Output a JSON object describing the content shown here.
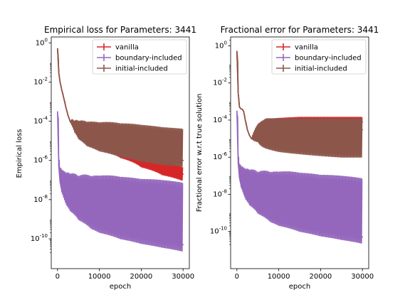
{
  "chart_data": [
    {
      "type": "line",
      "title": "Empirical loss for Parameters: 3441",
      "xlabel": "epoch",
      "ylabel": "Empirical loss",
      "xlim": [
        -1500,
        31500
      ],
      "ylim": [
        3e-12,
        2.0
      ],
      "yscale": "log",
      "xticks": [
        0,
        10000,
        20000,
        30000
      ],
      "yticks": [
        {
          "exp": "0",
          "value": 1
        },
        {
          "exp": "-2",
          "value": 0.01
        },
        {
          "exp": "-4",
          "value": 0.0001
        },
        {
          "exp": "-6",
          "value": 1e-06
        },
        {
          "exp": "-8",
          "value": 1e-08
        },
        {
          "exp": "-10",
          "value": 1e-10
        }
      ],
      "grid": false,
      "legend_position": "upper-right",
      "series": [
        {
          "name": "vanilla",
          "color": "#d62728",
          "x": [
            0,
            300,
            600,
            1000,
            1500,
            2000,
            2500,
            3000,
            4000,
            5000,
            7000,
            10000,
            15000,
            20000,
            25000,
            30000
          ],
          "y": [
            0.5,
            0.03,
            0.01,
            0.004,
            0.0015,
            0.0005,
            0.0002,
            0.0001,
            5e-05,
            3e-05,
            1.5e-05,
            8e-06,
            3e-06,
            1e-06,
            4e-07,
            2e-07
          ],
          "spread": {
            "up": [
              1,
              1,
              1,
              1,
              1,
              1,
              1,
              1,
              1.3,
              1.5,
              1.8,
              2.0,
              2.2,
              2.2,
              2.2,
              2.2
            ],
            "down": [
              1,
              1,
              1,
              1,
              1,
              1,
              1,
              1,
              1.3,
              1.5,
              1.8,
              2.0,
              2.2,
              2.2,
              2.2,
              2.2
            ]
          }
        },
        {
          "name": "boundary-included",
          "color": "#9467bd",
          "x": [
            0,
            300,
            600,
            1000,
            1500,
            2000,
            3000,
            5000,
            8000,
            10000,
            15000,
            20000,
            25000,
            30000
          ],
          "y": [
            0.0003,
            5e-07,
            8e-08,
            3e-08,
            1.5e-08,
            8e-09,
            4e-09,
            1.5e-09,
            6e-10,
            4e-10,
            2e-10,
            1.2e-10,
            8e-11,
            5e-11
          ],
          "spread": {
            "up": [
              1,
              2,
              5,
              10,
              18,
              28,
              50,
              100,
              250,
              400,
              700,
              900,
              1200,
              1400
            ],
            "down": [
              1,
              1,
              1.2,
              1.3,
              1.3,
              1.4,
              1.5,
              1.6,
              1.8,
              1.9,
              2.0,
              2.1,
              2.2,
              2.2
            ]
          }
        },
        {
          "name": "initial-included",
          "color": "#8c564b",
          "x": [
            0,
            300,
            600,
            1000,
            1500,
            2000,
            2500,
            3000,
            4000,
            5000,
            7000,
            10000,
            15000,
            20000,
            25000,
            30000
          ],
          "y": [
            0.5,
            0.03,
            0.01,
            0.004,
            0.0015,
            0.0005,
            0.0002,
            0.0001,
            4e-05,
            2e-05,
            1e-05,
            6e-06,
            3e-06,
            1.8e-06,
            1.2e-06,
            1e-06
          ],
          "spread": {
            "up": [
              1,
              1,
              1,
              1,
              1,
              1,
              1,
              1,
              2.5,
              5,
              9,
              14,
              25,
              35,
              40,
              40
            ],
            "down": [
              1,
              1,
              1,
              1,
              1,
              1,
              1,
              1,
              1.4,
              1.6,
              1.8,
              2.0,
              2.0,
              2.0,
              2.0,
              2.0
            ]
          }
        }
      ]
    },
    {
      "type": "line",
      "title": "Fractional error for Parameters: 3441",
      "xlabel": "epoch",
      "ylabel": "Fractional error w.r.t true solution",
      "xlim": [
        -1500,
        31500
      ],
      "ylim": [
        1e-12,
        3.0
      ],
      "yscale": "log",
      "xticks": [
        0,
        10000,
        20000,
        30000
      ],
      "yticks": [
        {
          "exp": "0",
          "value": 1
        },
        {
          "exp": "-2",
          "value": 0.01
        },
        {
          "exp": "-4",
          "value": 0.0001
        },
        {
          "exp": "-6",
          "value": 1e-06
        },
        {
          "exp": "-8",
          "value": 1e-08
        },
        {
          "exp": "-10",
          "value": 1e-10
        }
      ],
      "grid": false,
      "legend_position": "upper-right",
      "series": [
        {
          "name": "vanilla",
          "color": "#d62728",
          "x": [
            0,
            300,
            600,
            1000,
            1300,
            1600,
            2000,
            2500,
            3000,
            3500,
            5000,
            7000,
            10000,
            15000,
            20000,
            25000,
            30000
          ],
          "y": [
            0.5,
            0.003,
            0.0005,
            0.0004,
            0.00038,
            0.0003,
            0.0001,
            3e-05,
            1.5e-05,
            1e-05,
            3e-05,
            6e-05,
            7e-05,
            8e-05,
            8e-05,
            8e-05,
            8e-05
          ],
          "spread": {
            "up": [
              1,
              1,
              1,
              1,
              1,
              1,
              1,
              1,
              1,
              1,
              1.6,
              1.8,
              1.8,
              1.8,
              1.8,
              1.8,
              1.8
            ],
            "down": [
              1,
              1,
              1,
              1,
              1,
              1,
              1,
              1,
              1,
              1,
              2.0,
              3.0,
              3.0,
              3.0,
              3.0,
              3.0,
              3.0
            ]
          }
        },
        {
          "name": "boundary-included",
          "color": "#9467bd",
          "x": [
            0,
            300,
            600,
            1000,
            1500,
            2000,
            3000,
            5000,
            8000,
            10000,
            15000,
            20000,
            25000,
            30000
          ],
          "y": [
            0.0003,
            5e-07,
            8e-08,
            3e-08,
            1.5e-08,
            8e-09,
            4e-09,
            1.5e-09,
            6e-10,
            4e-10,
            2e-10,
            1.2e-10,
            8e-11,
            5e-11
          ],
          "spread": {
            "up": [
              1,
              2,
              5,
              10,
              18,
              28,
              50,
              100,
              250,
              400,
              700,
              900,
              1200,
              1400
            ],
            "down": [
              1,
              1,
              1.2,
              1.3,
              1.3,
              1.4,
              1.5,
              1.6,
              1.8,
              1.9,
              2.0,
              2.1,
              2.2,
              2.2
            ]
          }
        },
        {
          "name": "initial-included",
          "color": "#8c564b",
          "x": [
            0,
            300,
            600,
            1000,
            1300,
            1600,
            2000,
            2500,
            3000,
            3500,
            5000,
            7000,
            10000,
            15000,
            20000,
            25000,
            30000
          ],
          "y": [
            0.5,
            0.003,
            0.0005,
            0.0004,
            0.00038,
            0.0003,
            0.0001,
            3e-05,
            1.5e-05,
            1e-05,
            2e-05,
            3e-05,
            3e-05,
            3e-05,
            3e-05,
            3e-05,
            3e-05
          ],
          "spread": {
            "up": [
              1,
              1,
              1,
              1,
              1,
              1,
              1,
              1,
              1,
              1,
              3,
              4,
              4,
              4,
              4,
              4,
              4
            ],
            "down": [
              1,
              1,
              1,
              1,
              1,
              1,
              1,
              1,
              1,
              1,
              3,
              10,
              15,
              20,
              25,
              30,
              30
            ]
          }
        }
      ]
    }
  ]
}
